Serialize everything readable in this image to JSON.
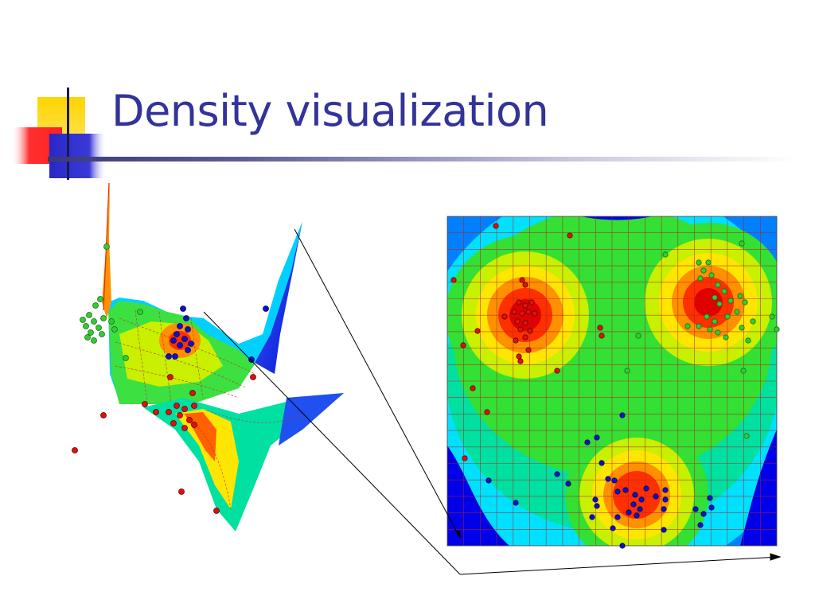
{
  "slide": {
    "title": "Density visualization",
    "title_color": "#33339a"
  },
  "decoration": {
    "colors": {
      "yellow": "#ffd400",
      "red": "#ff3030",
      "blue": "#3030d0",
      "navy": "#1a1a4a"
    }
  },
  "figure": {
    "colors": {
      "cluster_red": "#e01010",
      "cluster_green": "#33cc33",
      "cluster_blue": "#1010c8",
      "density_scale": [
        "#0000e8",
        "#0080ff",
        "#00e0ff",
        "#00e0a0",
        "#33e033",
        "#c8f000",
        "#ffe600",
        "#ff9000",
        "#ff3000",
        "#e00000"
      ],
      "grid_line": "#b22222",
      "connector": "#000000"
    },
    "left_panel": "3d-density-surface",
    "right_panel": "2d-density-contour-map"
  }
}
